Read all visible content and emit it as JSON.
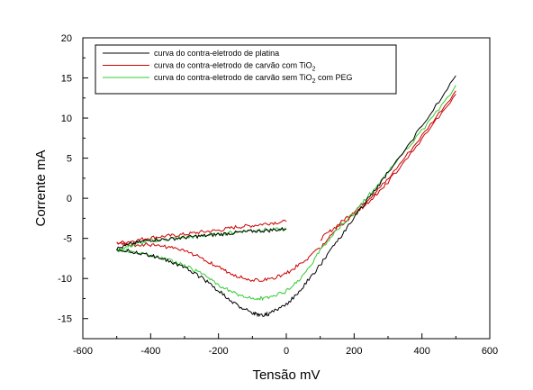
{
  "chart_data": {
    "type": "line",
    "title": "",
    "xlabel": "Tensão mV",
    "ylabel": "Corrente mA",
    "xlim": [
      -600,
      600
    ],
    "ylim": [
      -17.5,
      20
    ],
    "xticks": [
      -600,
      -400,
      -200,
      0,
      200,
      400,
      600
    ],
    "yticks": [
      -15,
      -10,
      -5,
      0,
      5,
      10,
      15,
      20
    ],
    "grid": false,
    "legend_position": "top-left",
    "legend": {
      "subscript": "2",
      "entries": [
        {
          "prefix": "curva do contra-eletrodo de platina",
          "sub": "",
          "suffix": ""
        },
        {
          "prefix": "curva do contra-eletrodo de carvão com TiO",
          "sub": "2",
          "suffix": ""
        },
        {
          "prefix": "curva do contra-eletrodo de carvão sem TiO",
          "sub": "2",
          "suffix": " com PEG"
        }
      ]
    },
    "series": [
      {
        "color": "#000000",
        "x": [
          500,
          400,
          300,
          250,
          200,
          150,
          100,
          50,
          0,
          -50,
          -80,
          -100,
          -150,
          -200,
          -250,
          -300,
          -350,
          -400,
          -450,
          -500,
          -450,
          -400,
          -350,
          -300,
          -250,
          -200,
          -150,
          -100,
          -50,
          0
        ],
        "y": [
          15.2,
          9.0,
          3.2,
          0.4,
          -2.4,
          -5.4,
          -8.3,
          -11.0,
          -13.3,
          -14.4,
          -14.6,
          -14.3,
          -13.2,
          -11.5,
          -9.9,
          -8.6,
          -7.8,
          -7.1,
          -6.7,
          -6.3,
          -5.6,
          -5.2,
          -5.1,
          -4.9,
          -4.7,
          -4.5,
          -4.3,
          -4.1,
          -4.0,
          -3.8
        ]
      },
      {
        "color": "#cc0000",
        "x": [
          500,
          400,
          300,
          250,
          200,
          150,
          100,
          50,
          0,
          -50,
          -100,
          -150,
          -200,
          -250,
          -300,
          -350,
          -400,
          -450,
          -500,
          -450,
          -400,
          -350,
          -300,
          -250,
          -200,
          -150,
          -100,
          -50,
          0,
          100,
          150,
          200,
          250,
          300,
          400,
          500
        ],
        "y": [
          13.0,
          7.4,
          2.0,
          -0.2,
          -2.0,
          -3.7,
          -6.2,
          -7.9,
          -9.4,
          -10.1,
          -10.2,
          -9.6,
          -8.6,
          -7.4,
          -6.6,
          -6.1,
          -5.8,
          -5.8,
          -5.6,
          -5.3,
          -4.9,
          -4.7,
          -4.5,
          -4.2,
          -4.0,
          -3.6,
          -3.4,
          -3.1,
          -2.9,
          -5.1,
          -3.4,
          -1.6,
          0.2,
          2.4,
          7.8,
          13.4
        ],
        "breaks": [
          29
        ]
      },
      {
        "color": "#33cc33",
        "x": [
          500,
          400,
          300,
          250,
          200,
          150,
          100,
          50,
          0,
          -50,
          -80,
          -100,
          -150,
          -200,
          -250,
          -300,
          -350,
          -400,
          -450,
          -500,
          -450,
          -400,
          -350,
          -300,
          -250,
          -200,
          -150,
          -100,
          -50,
          0
        ],
        "y": [
          14.0,
          8.4,
          3.3,
          0.7,
          -1.8,
          -3.8,
          -6.5,
          -9.7,
          -11.6,
          -12.4,
          -12.5,
          -12.4,
          -11.9,
          -10.8,
          -9.4,
          -8.4,
          -7.6,
          -7.1,
          -6.6,
          -6.5,
          -5.8,
          -5.3,
          -5.1,
          -4.9,
          -4.7,
          -4.5,
          -4.2,
          -4.0,
          -3.9,
          -3.9
        ]
      }
    ]
  }
}
